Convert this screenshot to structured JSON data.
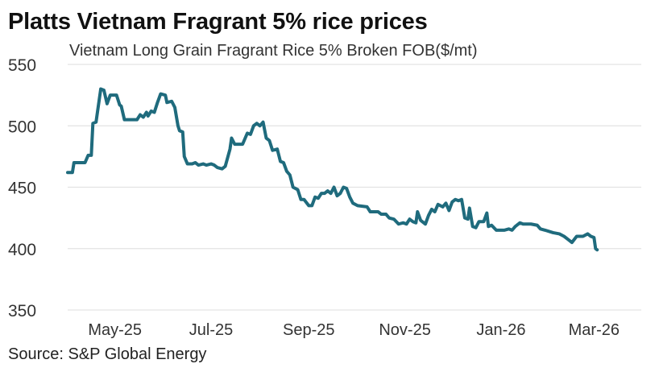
{
  "header": {
    "title": "Platts Vietnam Fragrant 5% rice prices",
    "subtitle": "Vietnam Long Grain Fragrant Rice 5% Broken FOB($/mt)"
  },
  "footer": {
    "source": "Source: S&P Global Energy"
  },
  "colors": {
    "line": "#1f6b7d",
    "grid": "#e3e3e3",
    "text": "#333333"
  },
  "chart_data": {
    "type": "line",
    "title": "Platts Vietnam Fragrant 5% rice prices",
    "subtitle": "Vietnam Long Grain Fragrant Rice 5% Broken FOB($/mt)",
    "xlabel": "",
    "ylabel": "",
    "ylim": [
      350,
      550
    ],
    "yticks": [
      550,
      500,
      450,
      400,
      350
    ],
    "grid": true,
    "legend": "none",
    "x_range": [
      "2025-04-01",
      "2026-03-31"
    ],
    "xticks": [
      {
        "date": "2025-05-01",
        "label": "May-25"
      },
      {
        "date": "2025-07-01",
        "label": "Jul-25"
      },
      {
        "date": "2025-09-01",
        "label": "Sep-25"
      },
      {
        "date": "2025-11-01",
        "label": "Nov-25"
      },
      {
        "date": "2026-01-01",
        "label": "Jan-26"
      },
      {
        "date": "2026-03-01",
        "label": "Mar-26"
      }
    ],
    "series": [
      {
        "points": [
          [
            "2025-04-01",
            462
          ],
          [
            "2025-04-04",
            462
          ],
          [
            "2025-04-05",
            470
          ],
          [
            "2025-04-12",
            470
          ],
          [
            "2025-04-14",
            476
          ],
          [
            "2025-04-16",
            476
          ],
          [
            "2025-04-17",
            502
          ],
          [
            "2025-04-19",
            503
          ],
          [
            "2025-04-20",
            512
          ],
          [
            "2025-04-22",
            530
          ],
          [
            "2025-04-24",
            529
          ],
          [
            "2025-04-26",
            518
          ],
          [
            "2025-04-28",
            525
          ],
          [
            "2025-05-02",
            525
          ],
          [
            "2025-05-04",
            517
          ],
          [
            "2025-05-05",
            516
          ],
          [
            "2025-05-07",
            505
          ],
          [
            "2025-05-15",
            505
          ],
          [
            "2025-05-17",
            509
          ],
          [
            "2025-05-19",
            507
          ],
          [
            "2025-05-21",
            511
          ],
          [
            "2025-05-22",
            508
          ],
          [
            "2025-05-24",
            512
          ],
          [
            "2025-05-26",
            511
          ],
          [
            "2025-05-28",
            519
          ],
          [
            "2025-05-30",
            526
          ],
          [
            "2025-06-02",
            525
          ],
          [
            "2025-06-03",
            519
          ],
          [
            "2025-06-06",
            520
          ],
          [
            "2025-06-08",
            515
          ],
          [
            "2025-06-10",
            500
          ],
          [
            "2025-06-11",
            496
          ],
          [
            "2025-06-13",
            495
          ],
          [
            "2025-06-14",
            475
          ],
          [
            "2025-06-16",
            469
          ],
          [
            "2025-06-19",
            469
          ],
          [
            "2025-06-21",
            470
          ],
          [
            "2025-06-23",
            468
          ],
          [
            "2025-06-26",
            469
          ],
          [
            "2025-06-28",
            468
          ],
          [
            "2025-07-01",
            469
          ],
          [
            "2025-07-03",
            468
          ],
          [
            "2025-07-05",
            466
          ],
          [
            "2025-07-08",
            465
          ],
          [
            "2025-07-10",
            467
          ],
          [
            "2025-07-13",
            481
          ],
          [
            "2025-07-14",
            490
          ],
          [
            "2025-07-16",
            485
          ],
          [
            "2025-07-21",
            485
          ],
          [
            "2025-07-24",
            494
          ],
          [
            "2025-07-26",
            493
          ],
          [
            "2025-07-28",
            500
          ],
          [
            "2025-07-30",
            502
          ],
          [
            "2025-08-01",
            500
          ],
          [
            "2025-08-03",
            503
          ],
          [
            "2025-08-05",
            490
          ],
          [
            "2025-08-07",
            488
          ],
          [
            "2025-08-09",
            480
          ],
          [
            "2025-08-12",
            481
          ],
          [
            "2025-08-14",
            471
          ],
          [
            "2025-08-16",
            470
          ],
          [
            "2025-08-18",
            463
          ],
          [
            "2025-08-20",
            460
          ],
          [
            "2025-08-22",
            450
          ],
          [
            "2025-08-25",
            448
          ],
          [
            "2025-08-27",
            440
          ],
          [
            "2025-08-29",
            440
          ],
          [
            "2025-09-01",
            435
          ],
          [
            "2025-09-03",
            435
          ],
          [
            "2025-09-05",
            442
          ],
          [
            "2025-09-07",
            441
          ],
          [
            "2025-09-09",
            445
          ],
          [
            "2025-09-11",
            445
          ],
          [
            "2025-09-13",
            447
          ],
          [
            "2025-09-15",
            445
          ],
          [
            "2025-09-17",
            450
          ],
          [
            "2025-09-19",
            443
          ],
          [
            "2025-09-21",
            445
          ],
          [
            "2025-09-23",
            450
          ],
          [
            "2025-09-25",
            449
          ],
          [
            "2025-09-27",
            442
          ],
          [
            "2025-09-29",
            437
          ],
          [
            "2025-10-02",
            435
          ],
          [
            "2025-10-08",
            434
          ],
          [
            "2025-10-10",
            430
          ],
          [
            "2025-10-15",
            430
          ],
          [
            "2025-10-17",
            428
          ],
          [
            "2025-10-20",
            428
          ],
          [
            "2025-10-22",
            425
          ],
          [
            "2025-10-25",
            424
          ],
          [
            "2025-10-28",
            420
          ],
          [
            "2025-10-31",
            421
          ],
          [
            "2025-11-02",
            420
          ],
          [
            "2025-11-04",
            424
          ],
          [
            "2025-11-06",
            422
          ],
          [
            "2025-11-08",
            421
          ],
          [
            "2025-11-09",
            430
          ],
          [
            "2025-11-11",
            423
          ],
          [
            "2025-11-14",
            420
          ],
          [
            "2025-11-16",
            427
          ],
          [
            "2025-11-18",
            432
          ],
          [
            "2025-11-20",
            430
          ],
          [
            "2025-11-22",
            436
          ],
          [
            "2025-11-25",
            434
          ],
          [
            "2025-11-27",
            437
          ],
          [
            "2025-11-29",
            431
          ],
          [
            "2025-12-01",
            438
          ],
          [
            "2025-12-03",
            440
          ],
          [
            "2025-12-05",
            439
          ],
          [
            "2025-12-07",
            440
          ],
          [
            "2025-12-09",
            425
          ],
          [
            "2025-12-11",
            424
          ],
          [
            "2025-12-12",
            433
          ],
          [
            "2025-12-14",
            418
          ],
          [
            "2025-12-16",
            417
          ],
          [
            "2025-12-18",
            422
          ],
          [
            "2025-12-21",
            422
          ],
          [
            "2025-12-23",
            429
          ],
          [
            "2025-12-24",
            418
          ],
          [
            "2025-12-26",
            419
          ],
          [
            "2025-12-29",
            415
          ],
          [
            "2026-01-03",
            415
          ],
          [
            "2026-01-06",
            416
          ],
          [
            "2026-01-08",
            415
          ],
          [
            "2026-01-10",
            418
          ],
          [
            "2026-01-13",
            421
          ],
          [
            "2026-01-15",
            420
          ],
          [
            "2026-01-20",
            420
          ],
          [
            "2026-01-24",
            419
          ],
          [
            "2026-01-26",
            416
          ],
          [
            "2026-01-29",
            415
          ],
          [
            "2026-02-03",
            413
          ],
          [
            "2026-02-07",
            412
          ],
          [
            "2026-02-10",
            410
          ],
          [
            "2026-02-13",
            407
          ],
          [
            "2026-02-15",
            405
          ],
          [
            "2026-02-18",
            410
          ],
          [
            "2026-02-22",
            410
          ],
          [
            "2026-02-25",
            412
          ],
          [
            "2026-02-27",
            410
          ],
          [
            "2026-03-01",
            409
          ],
          [
            "2026-03-02",
            400
          ],
          [
            "2026-03-03",
            399
          ]
        ]
      }
    ]
  }
}
